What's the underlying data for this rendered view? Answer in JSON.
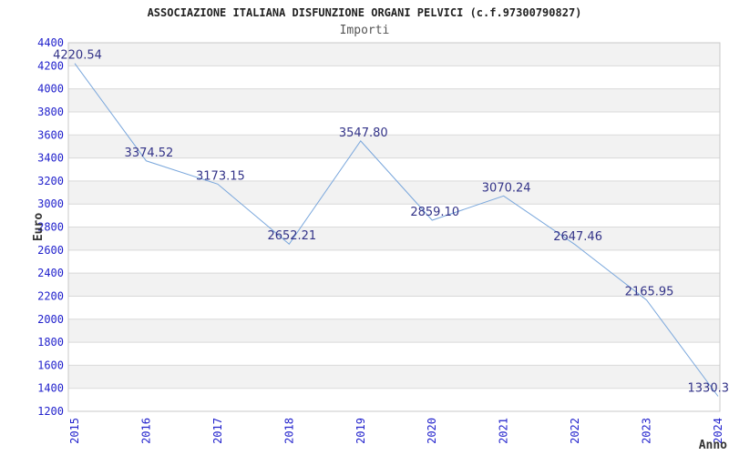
{
  "chart_data": {
    "type": "line",
    "title": "ASSOCIAZIONE ITALIANA DISFUNZIONE ORGANI PELVICI (c.f.97300790827)",
    "subtitle": "Importi",
    "xlabel": "Anno",
    "ylabel": "Euro",
    "x": [
      2015,
      2016,
      2017,
      2018,
      2019,
      2020,
      2021,
      2022,
      2023,
      2024
    ],
    "values": [
      4220.54,
      3374.52,
      3173.15,
      2652.21,
      3547.8,
      2859.1,
      3070.24,
      2647.46,
      2165.95,
      1330.3
    ],
    "point_labels": [
      "4220.54",
      "3374.52",
      "3173.15",
      "2652.21",
      "3547.80",
      "2859.10",
      "3070.24",
      "2647.46",
      "2165.95",
      "1330.3"
    ],
    "ylim": [
      1200,
      4400
    ],
    "ytick_step": 200,
    "grid": true,
    "legend_position": "none",
    "colors": {
      "line": "#7aa7dc",
      "tick_label": "#2222cc",
      "point_label": "#333388",
      "band_even": "#f2f2f2",
      "band_odd": "#ffffff",
      "gridline": "#d9d9d9",
      "plot_border": "#c8c8c8"
    }
  }
}
